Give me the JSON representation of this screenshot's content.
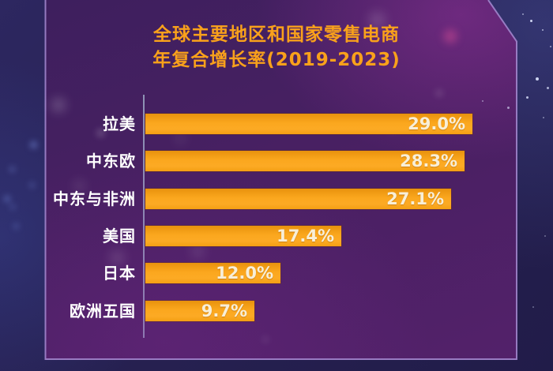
{
  "title": {
    "line1": "全球主要地区和国家零售电商",
    "line2": "年复合增长率(2019-2023)"
  },
  "chart_data": {
    "type": "bar",
    "orientation": "horizontal",
    "title": "全球主要地区和国家零售电商年复合增长率(2019-2023)",
    "categories": [
      "拉美",
      "中东欧",
      "中东与非洲",
      "美国",
      "日本",
      "欧洲五国"
    ],
    "values": [
      29.0,
      28.3,
      27.1,
      17.4,
      12.0,
      9.7
    ],
    "value_labels": [
      "29.0%",
      "28.3%",
      "27.1%",
      "17.4%",
      "12.0%",
      "9.7%"
    ],
    "unit": "%",
    "xlim": [
      0,
      29.5
    ],
    "grid": false,
    "legend": false,
    "value_label_position": "inside-end"
  },
  "colors": {
    "background": "#262051",
    "panel": "#4a2063",
    "panel_border": "#a58bd1",
    "bar_top": "#e8920d",
    "bar_bottom": "#f49f13",
    "title_text": "#f9a11b",
    "category_text": "#ffffff",
    "value_text": "#f8efd8",
    "axis_line": "#96a0be"
  }
}
